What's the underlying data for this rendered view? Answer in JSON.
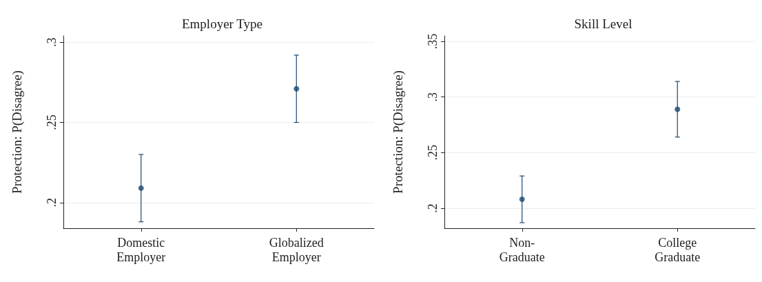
{
  "chart_data": [
    {
      "type": "scatter",
      "title": "Employer Type",
      "ylabel": "Protection: P(Disagree)",
      "categories": [
        "Domestic\nEmployer",
        "Globalized\nEmployer"
      ],
      "series": [
        {
          "color": "#1a476f",
          "values": [
            0.209,
            0.271
          ],
          "errors": [
            [
              0.188,
              0.23
            ],
            [
              0.25,
              0.292
            ]
          ]
        }
      ],
      "ylim": [
        0.184,
        0.304
      ],
      "yticks": [
        {
          "value": 0.2,
          "label": ".2"
        },
        {
          "value": 0.25,
          "label": ".25"
        },
        {
          "value": 0.3,
          "label": ".3"
        }
      ],
      "grid": "y",
      "marker": "circle"
    },
    {
      "type": "scatter",
      "title": "Skill Level",
      "ylabel": "Protection: P(Disagree)",
      "categories": [
        "Non-\nGraduate",
        "College\nGraduate"
      ],
      "series": [
        {
          "color": "#1a476f",
          "values": [
            0.208,
            0.289
          ],
          "errors": [
            [
              0.187,
              0.229
            ],
            [
              0.264,
              0.314
            ]
          ]
        }
      ],
      "ylim": [
        0.182,
        0.355
      ],
      "yticks": [
        {
          "value": 0.2,
          "label": ".2"
        },
        {
          "value": 0.25,
          "label": ".25"
        },
        {
          "value": 0.3,
          "label": ".3"
        },
        {
          "value": 0.35,
          "label": ".35"
        }
      ],
      "grid": "y",
      "marker": "circle"
    }
  ]
}
